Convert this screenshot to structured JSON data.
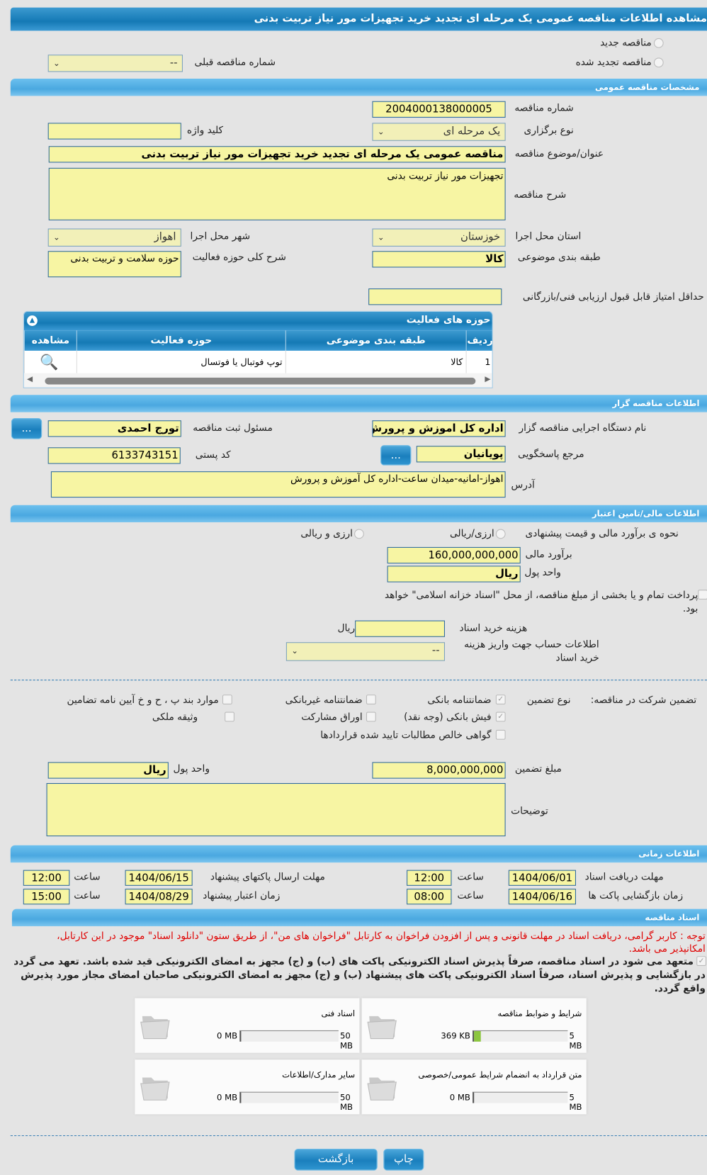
{
  "title": "مشاهده اطلاعات مناقصه عمومی یک مرحله ای تجدید خرید تجهیزات مور نیاز تربیت بدنی",
  "top": {
    "radio_new": "مناقصه جدید",
    "radio_renewed": "مناقصه تجدید شده",
    "prev_number_label": "شماره مناقصه قبلی",
    "prev_number_value": "--"
  },
  "general": {
    "section": "مشخصات مناقصه عمومی",
    "number_label": "شماره مناقصه",
    "number": "2004000138000005",
    "type_label": "نوع برگزاری",
    "type": "یک مرحله ای",
    "keyword_label": "کلید واژه",
    "keyword": "",
    "subject_label": "عنوان/موضوع مناقصه",
    "subject": "مناقصه عمومی یک مرحله ای تجدید خرید تجهیزات مور نیاز تربیت بدنی",
    "desc_label": "شرح مناقصه",
    "desc": "تجهیزات مور نیاز تربیت بدنی",
    "province_label": "استان محل اجرا",
    "province": "خوزستان",
    "city_label": "شهر محل اجرا",
    "city": "اهواز",
    "category_label": "طبقه بندی موضوعی",
    "category": "کالا",
    "activity_desc_label": "شرح کلی حوزه فعالیت",
    "activity_desc": "حوزه سلامت و تربیت بدنی",
    "min_score_label": "حداقل امتیاز قابل قبول ارزیابی فنی/بازرگانی",
    "min_score": ""
  },
  "activities": {
    "title": "حوزه های فعالیت",
    "columns": [
      "ردیف",
      "طبقه بندی موضوعی",
      "حوزه فعالیت",
      "مشاهده"
    ],
    "rows": [
      {
        "index": "1",
        "category": "کالا",
        "field": "توپ فوتبال یا فوتسال"
      }
    ]
  },
  "organizer": {
    "section": "اطلاعات مناقصه گزار",
    "org_label": "نام دستگاه اجرایی مناقصه گزار",
    "org": "اداره کل اموزش و پرورش اس",
    "responsible_label": "مسئول ثبت مناقصه",
    "responsible": "تورج احمدی",
    "reference_label": "مرجع پاسخگویی",
    "reference": "پویانیان",
    "postal_label": "کد پستی",
    "postal": "6133743151",
    "address_label": "آدرس",
    "address": "اهواز-امانیه-میدان ساعت-اداره کل آموزش و پرورش",
    "more_button": "..."
  },
  "finance": {
    "section": "اطلاعات مالی/تامین اعتبار",
    "method_label": "نحوه ی برآورد مالی و قیمت پیشنهادی",
    "opt1": "ارزی/ریالی",
    "opt2": "ارزی و ریالی",
    "estimate_label": "برآورد مالی",
    "estimate": "160,000,000,000",
    "currency_label": "واحد پول",
    "currency": "ریال",
    "treasury_text": "پرداخت تمام و یا بخشی از مبلغ مناقصه، از محل \"اسناد خزانه اسلامی\" خواهد بود.",
    "doc_fee_label": "هزینه خرید اسناد",
    "doc_fee": "",
    "doc_fee_unit": "ریال",
    "account_label": "اطلاعات حساب جهت واریز هزینه خرید اسناد",
    "account": "--"
  },
  "guarantee": {
    "label": "تضمین شرکت در مناقصه:",
    "type_label": "نوع تضمین",
    "options": [
      {
        "label": "ضمانتنامه بانکی",
        "checked": true
      },
      {
        "label": "ضمانتنامه غیربانکی",
        "checked": false
      },
      {
        "label": "موارد بند پ ، ح و خ آیین نامه تضامین",
        "checked": false
      },
      {
        "label": "فیش بانکی (وجه نقد)",
        "checked": true
      },
      {
        "label": "اوراق مشارکت",
        "checked": false
      },
      {
        "label": "وثیقه ملکی",
        "checked": false
      },
      {
        "label": "گواهی خالص مطالبات تایید شده قراردادها",
        "checked": false
      }
    ],
    "amount_label": "مبلغ تضمین",
    "amount": "8,000,000,000",
    "currency_label": "واحد پول",
    "currency": "ریال",
    "notes_label": "توضیحات",
    "notes": ""
  },
  "timing": {
    "section": "اطلاعات زمانی",
    "time_label": "ساعت",
    "doc_deadline_label": "مهلت دریافت اسناد",
    "doc_deadline": "1404/06/01",
    "doc_deadline_time": "12:00",
    "submit_deadline_label": "مهلت ارسال پاکتهای پیشنهاد",
    "submit_deadline": "1404/06/15",
    "submit_deadline_time": "12:00",
    "opening_label": "زمان بازگشایی پاکت ها",
    "opening": "1404/06/16",
    "opening_time": "08:00",
    "validity_label": "زمان اعتبار پیشنهاد",
    "validity": "1404/08/29",
    "validity_time": "15:00"
  },
  "documents": {
    "section": "اسناد مناقصه",
    "notice": "توجه : کاربر گرامی، دریافت اسناد در مهلت قانونی و پس از افزودن فراخوان به کارتابل \"فراخوان های من\"، از طریق ستون \"دانلود اسناد\" موجود در این کارتابل، امکانپذیر می باشد.",
    "commitment": "متعهد می شود در اسناد مناقصه، صرفاً پذیرش اسناد الکترونیکی پاکت های (ب) و (ج) مجهز به امضای الکترونیکی قید شده باشد. تعهد می گردد در بازگشایی و پذیرش اسناد، صرفاً اسناد الکترونیکی پاکت های پیشنهاد (ب) و (ج) مجهز به امضای الکترونیکی صاحبان امضای مجاز مورد پذیرش واقع گردد.",
    "items": [
      {
        "name": "شرایط و ضوابط مناقصه",
        "used": "369 KB",
        "max": "5 MB",
        "fill": 0.07
      },
      {
        "name": "اسناد فنی",
        "used": "0 MB",
        "max": "50 MB",
        "fill": 0
      },
      {
        "name": "متن قرارداد به انضمام شرایط عمومی/خصوصی",
        "used": "0 MB",
        "max": "5 MB",
        "fill": 0
      },
      {
        "name": "سایر مدارک/اطلاعات",
        "used": "0 MB",
        "max": "50 MB",
        "fill": 0
      }
    ]
  },
  "buttons": {
    "print": "چاپ",
    "back": "بازگشت"
  },
  "colors": {
    "header": "#1479b5",
    "section": "#4aa8e0",
    "field": "#f7f5a3",
    "notice": "#e00000",
    "progress": "#8cc63f"
  }
}
